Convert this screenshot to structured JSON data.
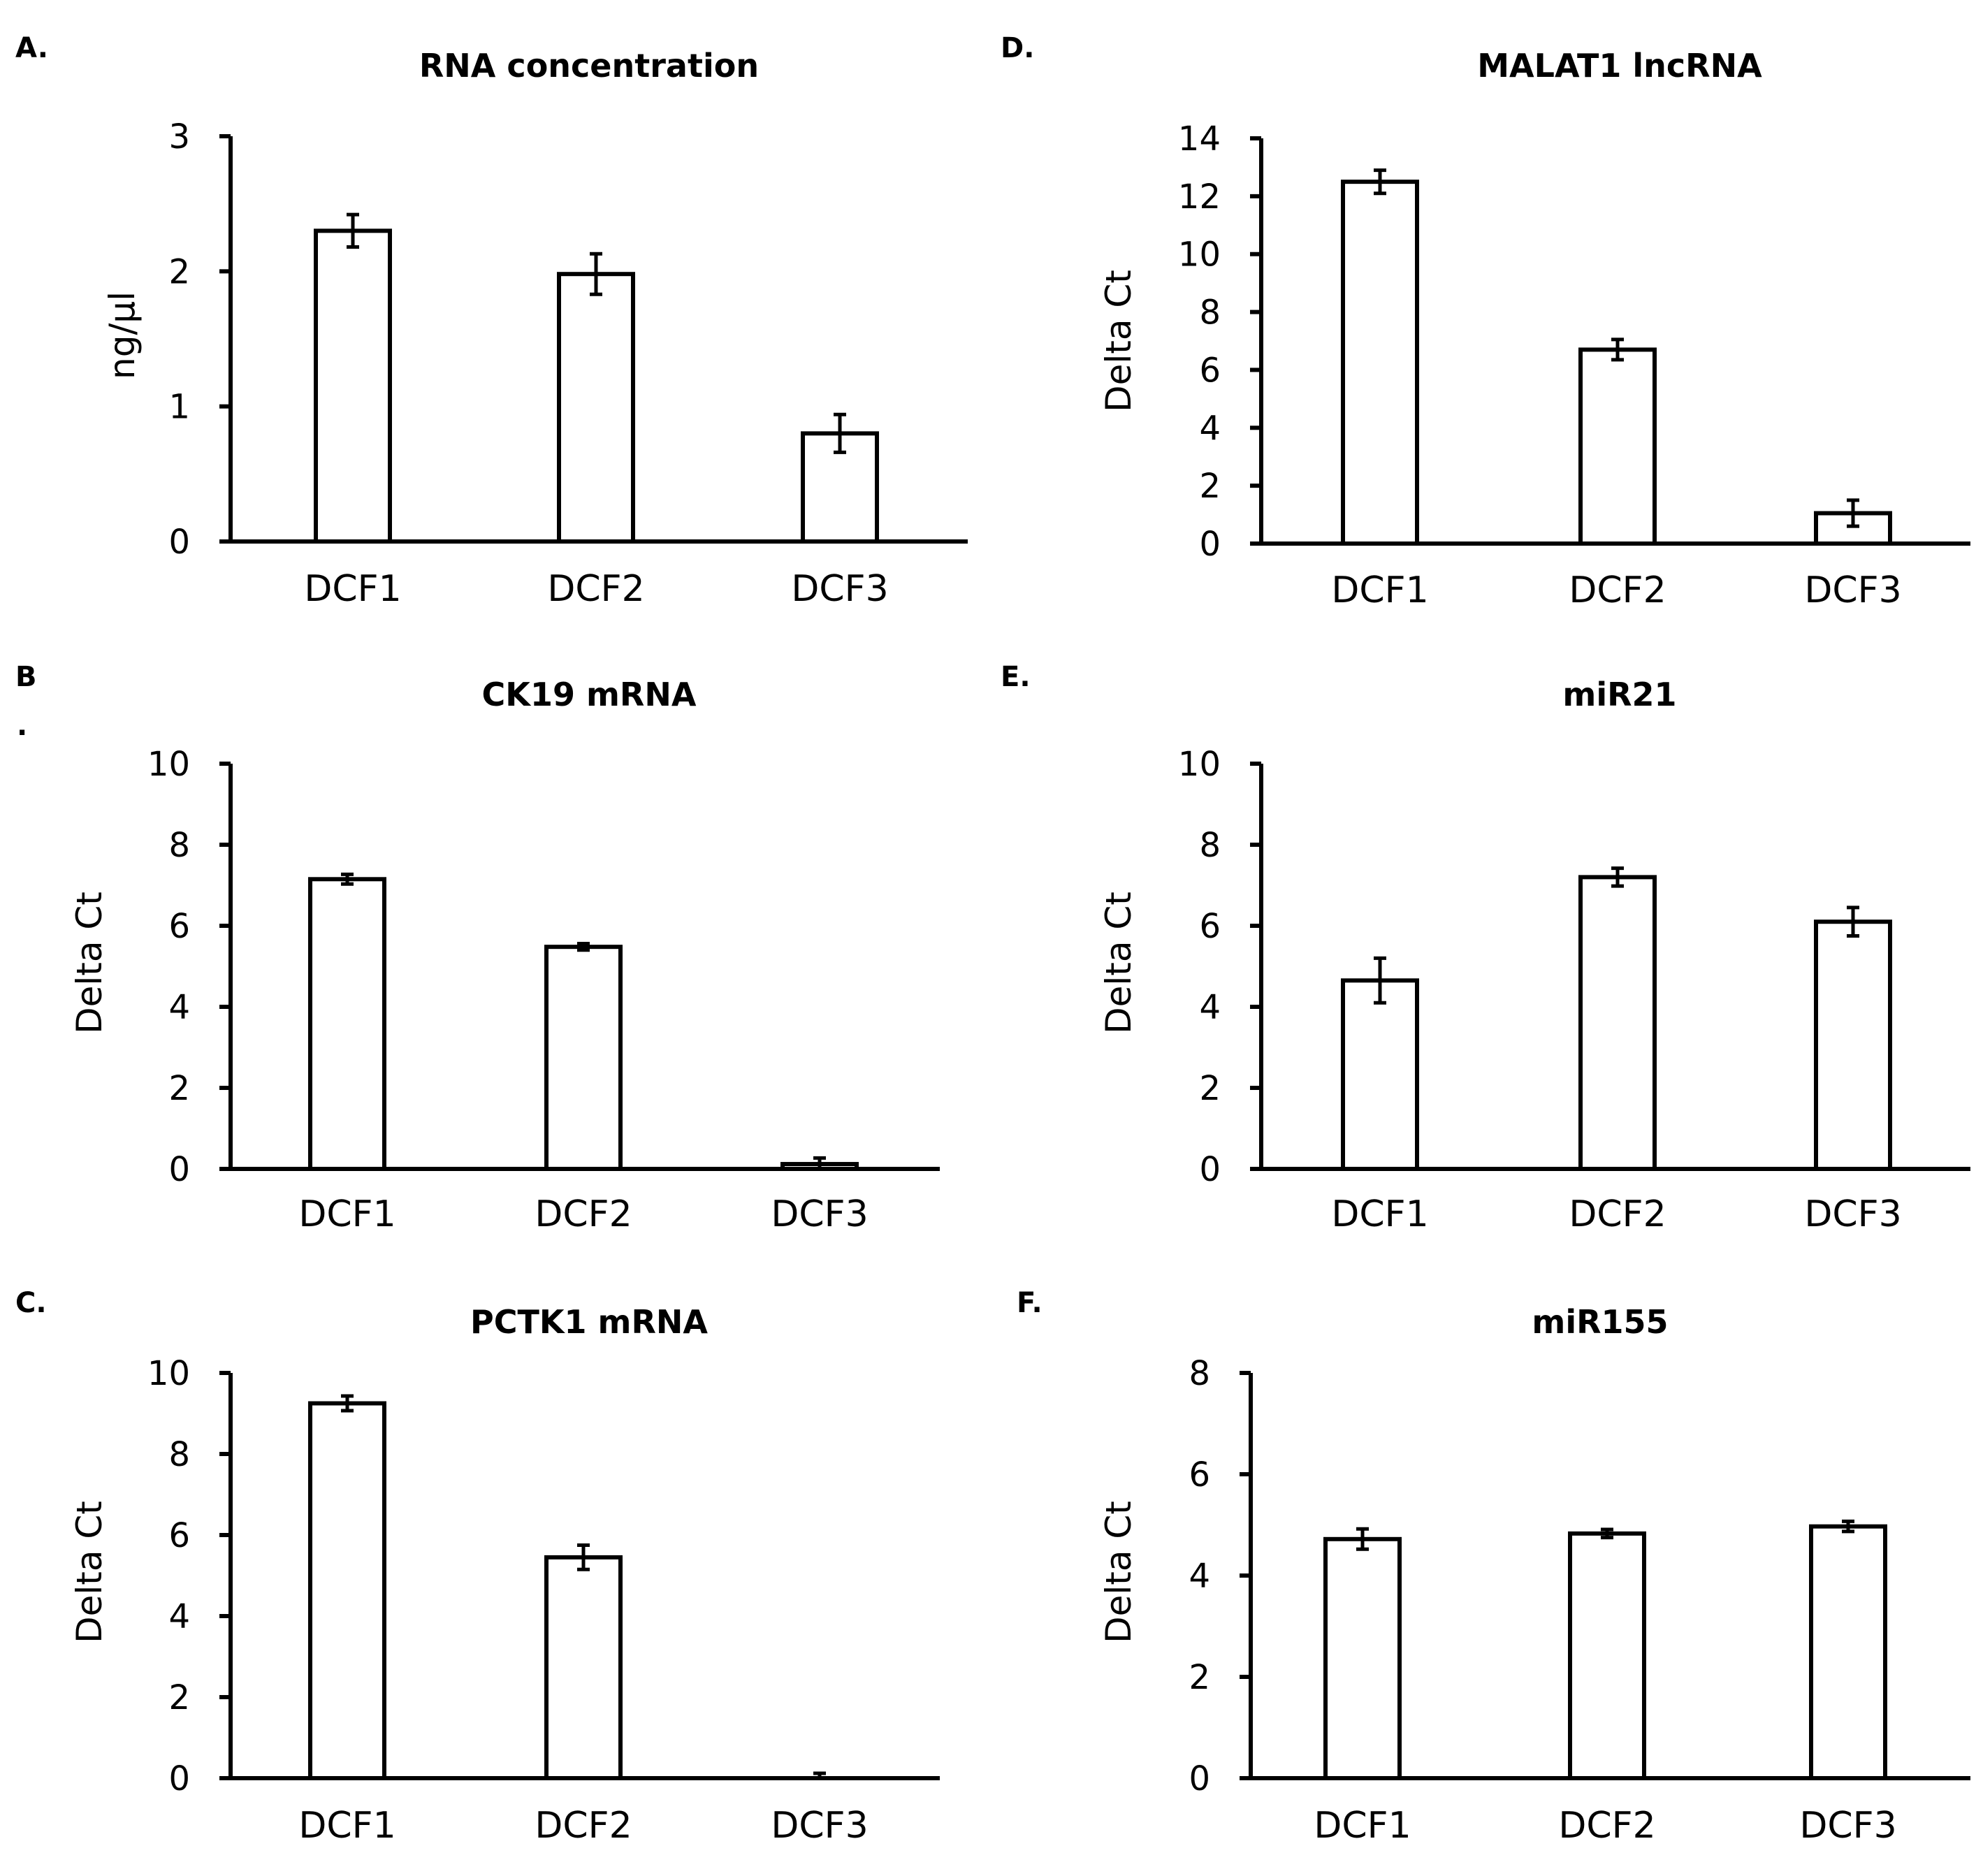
{
  "colors": {
    "bar_fill": "#ffffff",
    "stroke": "#000000",
    "background": "#ffffff"
  },
  "chart_data": [
    {
      "id": "A",
      "panel_label": "A.",
      "type": "bar",
      "title": "RNA concentration",
      "xlabel": "",
      "ylabel": "ng/µl",
      "categories": [
        "DCF1",
        "DCF2",
        "DCF3"
      ],
      "values": [
        2.3,
        1.98,
        0.8
      ],
      "errors": [
        0.12,
        0.15,
        0.14
      ],
      "ylim": [
        0,
        3
      ],
      "yticks": [
        0,
        1,
        2,
        3
      ],
      "ytick_labels": [
        "0",
        "1",
        "2",
        "3"
      ],
      "grid": false
    },
    {
      "id": "D",
      "panel_label": "D.",
      "type": "bar",
      "title": "MALAT1 lncRNA",
      "xlabel": "",
      "ylabel": "Delta Ct",
      "categories": [
        "DCF1",
        "DCF2",
        "DCF3"
      ],
      "values": [
        12.5,
        6.7,
        1.05
      ],
      "errors": [
        0.4,
        0.35,
        0.45
      ],
      "ylim": [
        0,
        14
      ],
      "yticks": [
        0,
        2,
        4,
        6,
        8,
        10,
        12,
        14
      ],
      "ytick_labels": [
        "0",
        "2",
        "4",
        "6",
        "8",
        "10",
        "12",
        "14"
      ],
      "grid": false
    },
    {
      "id": "B",
      "panel_label": "B",
      "panel_label_extra": ".",
      "type": "bar",
      "title": "CK19 mRNA",
      "xlabel": "",
      "ylabel": "Delta Ct",
      "categories": [
        "DCF1",
        "DCF2",
        "DCF3"
      ],
      "values": [
        7.15,
        5.48,
        0.12
      ],
      "errors": [
        0.12,
        0.08,
        0.15
      ],
      "ylim": [
        0,
        10
      ],
      "yticks": [
        0,
        2,
        4,
        6,
        8,
        10
      ],
      "ytick_labels": [
        "0",
        "2",
        "4",
        "6",
        "8",
        "10"
      ],
      "grid": false
    },
    {
      "id": "E",
      "panel_label": "E.",
      "type": "bar",
      "title": "miR21",
      "xlabel": "",
      "ylabel": "Delta Ct",
      "categories": [
        "DCF1",
        "DCF2",
        "DCF3"
      ],
      "values": [
        4.65,
        7.2,
        6.1
      ],
      "errors": [
        0.55,
        0.22,
        0.35
      ],
      "ylim": [
        0,
        10
      ],
      "yticks": [
        0,
        2,
        4,
        6,
        8,
        10
      ],
      "ytick_labels": [
        "0",
        "2",
        "4",
        "6",
        "8",
        "10"
      ],
      "grid": false
    },
    {
      "id": "C",
      "panel_label": "C.",
      "type": "bar",
      "title": "PCTK1 mRNA",
      "xlabel": "",
      "ylabel": "Delta Ct",
      "categories": [
        "DCF1",
        "DCF2",
        "DCF3"
      ],
      "values": [
        9.25,
        5.45,
        0.0
      ],
      "errors": [
        0.18,
        0.3,
        0.12
      ],
      "ylim": [
        0,
        10
      ],
      "yticks": [
        0,
        2,
        4,
        6,
        8,
        10
      ],
      "ytick_labels": [
        "0",
        "2",
        "4",
        "6",
        "8",
        "10"
      ],
      "grid": false
    },
    {
      "id": "F",
      "panel_label": "F.",
      "type": "bar",
      "title": "miR155",
      "xlabel": "",
      "ylabel": "Delta Ct",
      "categories": [
        "DCF1",
        "DCF2",
        "DCF3"
      ],
      "values": [
        4.72,
        4.83,
        4.97
      ],
      "errors": [
        0.2,
        0.08,
        0.1
      ],
      "ylim": [
        0,
        8
      ],
      "yticks": [
        0,
        2,
        4,
        6,
        8
      ],
      "ytick_labels": [
        "0",
        "2",
        "4",
        "6",
        "8"
      ],
      "grid": false
    }
  ]
}
